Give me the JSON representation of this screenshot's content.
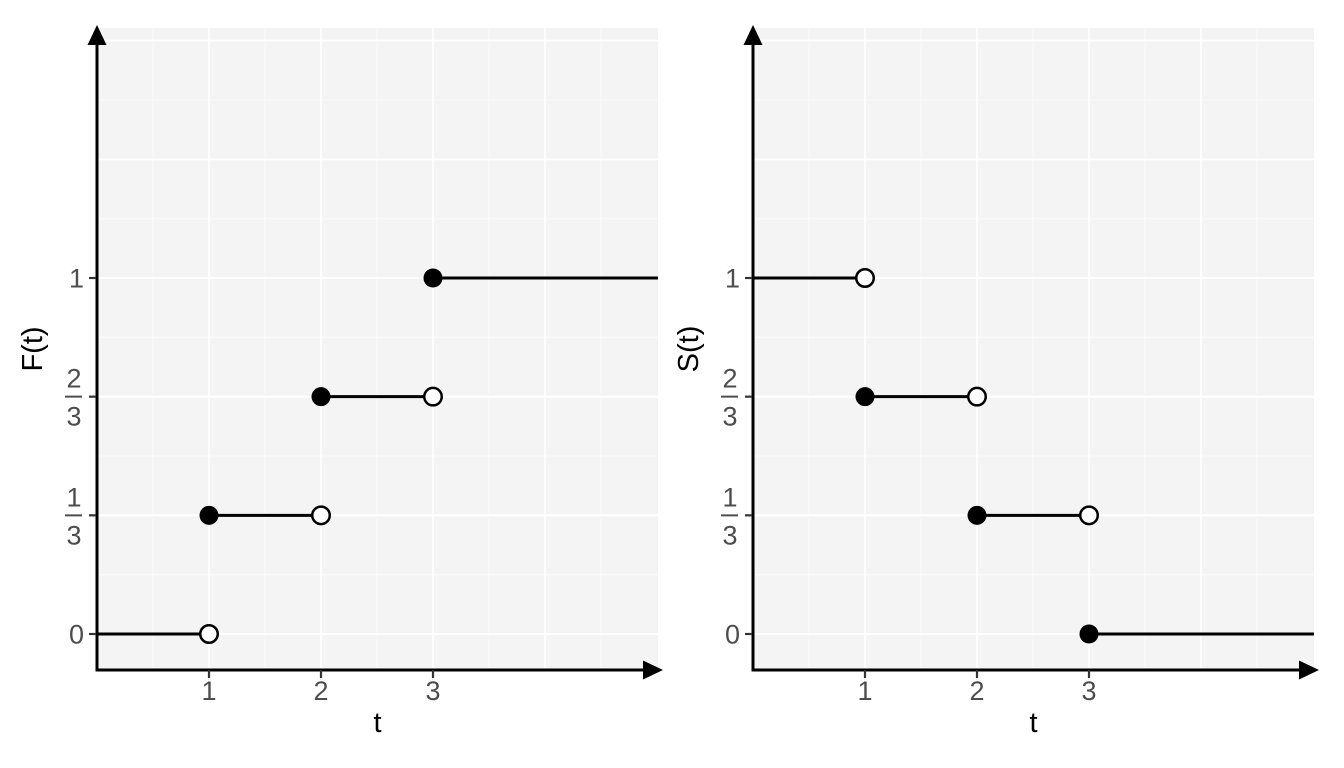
{
  "figure": {
    "description": "Side-by-side step plots of a cumulative distribution function F(t) and survival function S(t) with jumps at t = 1, 2, 3"
  },
  "colors": {
    "background": "#ffffff",
    "panel": "#f4f4f4",
    "grid_major": "#ffffff",
    "grid_minor": "rgba(255,255,255,0.55)",
    "axis": "#000000",
    "tick": "#333333",
    "tick_label": "#4d4d4d",
    "axis_title": "#000000",
    "line": "#000000",
    "point_fill": "#000000",
    "point_open_fill": "#ffffff"
  },
  "chart_data": [
    {
      "type": "line",
      "subtype": "step-function",
      "title": "",
      "xlabel": "t",
      "ylabel": "F(t)",
      "xlim": [
        0,
        5.01
      ],
      "ylim": [
        -0.101,
        1.702
      ],
      "grid": "major and minor, white on grey panel",
      "legend": "none",
      "x_ticks": [
        {
          "value": 1,
          "label": "1"
        },
        {
          "value": 2,
          "label": "2"
        },
        {
          "value": 3,
          "label": "3"
        }
      ],
      "y_ticks": [
        {
          "value": 0,
          "label": "0",
          "fraction": null
        },
        {
          "value": 0.33333,
          "label": "1/3",
          "fraction": {
            "numerator": "1",
            "denominator": "3"
          }
        },
        {
          "value": 0.66667,
          "label": "2/3",
          "fraction": {
            "numerator": "2",
            "denominator": "3"
          }
        },
        {
          "value": 1,
          "label": "1",
          "fraction": null
        }
      ],
      "steps": [
        {
          "x_start": 0,
          "x_end": 1,
          "y": 0,
          "y_label": "0",
          "start_marker": "none",
          "end_marker": "open"
        },
        {
          "x_start": 1,
          "x_end": 2,
          "y": 0.33333,
          "y_label": "1/3",
          "start_marker": "filled",
          "end_marker": "open"
        },
        {
          "x_start": 2,
          "x_end": 3,
          "y": 0.66667,
          "y_label": "2/3",
          "start_marker": "filled",
          "end_marker": "open"
        },
        {
          "x_start": 3,
          "x_end": null,
          "y": 1,
          "y_label": "1",
          "start_marker": "filled",
          "end_marker": "none"
        }
      ]
    },
    {
      "type": "line",
      "subtype": "step-function",
      "title": "",
      "xlabel": "t",
      "ylabel": "S(t)",
      "xlim": [
        0,
        5.01
      ],
      "ylim": [
        -0.101,
        1.702
      ],
      "grid": "major and minor, white on grey panel",
      "legend": "none",
      "x_ticks": [
        {
          "value": 1,
          "label": "1"
        },
        {
          "value": 2,
          "label": "2"
        },
        {
          "value": 3,
          "label": "3"
        }
      ],
      "y_ticks": [
        {
          "value": 0,
          "label": "0",
          "fraction": null
        },
        {
          "value": 0.33333,
          "label": "1/3",
          "fraction": {
            "numerator": "1",
            "denominator": "3"
          }
        },
        {
          "value": 0.66667,
          "label": "2/3",
          "fraction": {
            "numerator": "2",
            "denominator": "3"
          }
        },
        {
          "value": 1,
          "label": "1",
          "fraction": null
        }
      ],
      "steps": [
        {
          "x_start": 0,
          "x_end": 1,
          "y": 1,
          "y_label": "1",
          "start_marker": "none",
          "end_marker": "open"
        },
        {
          "x_start": 1,
          "x_end": 2,
          "y": 0.66667,
          "y_label": "2/3",
          "start_marker": "filled",
          "end_marker": "open"
        },
        {
          "x_start": 2,
          "x_end": 3,
          "y": 0.33333,
          "y_label": "1/3",
          "start_marker": "filled",
          "end_marker": "open"
        },
        {
          "x_start": 3,
          "x_end": null,
          "y": 0,
          "y_label": "0",
          "start_marker": "filled",
          "end_marker": "none"
        }
      ]
    }
  ]
}
